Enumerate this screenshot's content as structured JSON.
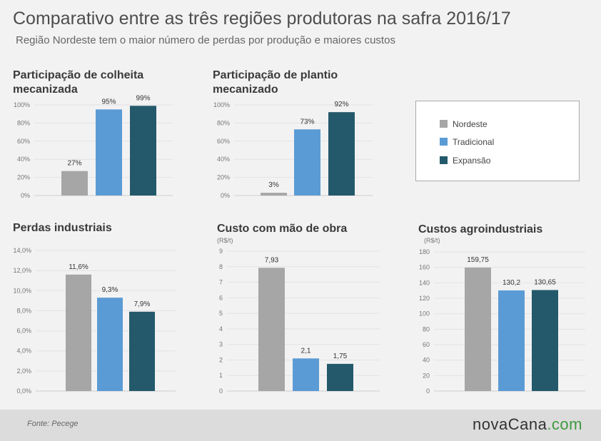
{
  "header": {
    "title": "Comparativo entre as três regiões produtoras na safra 2016/17",
    "subtitle": "Região Nordeste tem o maior número de perdas por produção e maiores custos"
  },
  "legend": {
    "items": [
      {
        "label": "Nordeste",
        "color": "#a6a6a6"
      },
      {
        "label": "Tradicional",
        "color": "#5b9bd5"
      },
      {
        "label": "Expansão",
        "color": "#24596b"
      }
    ]
  },
  "footer": {
    "source": "Fonte: Pecege",
    "brand": "novaCana",
    "brand_suffix": ".com"
  },
  "chart_data": [
    {
      "type": "bar",
      "title": "Participação de colheita mecanizada",
      "categories": [
        "Nordeste",
        "Tradicional",
        "Expansão"
      ],
      "values": [
        27,
        95,
        99
      ],
      "value_labels": [
        "27%",
        "95%",
        "99%"
      ],
      "ylim": [
        0,
        100
      ],
      "yticks": [
        0,
        20,
        40,
        60,
        80,
        100
      ],
      "ytick_labels": [
        "0%",
        "20%",
        "40%",
        "60%",
        "80%",
        "100%"
      ],
      "unit": "",
      "colors": [
        "#a6a6a6",
        "#5b9bd5",
        "#24596b"
      ],
      "grid": true
    },
    {
      "type": "bar",
      "title": "Participação de plantio mecanizado",
      "categories": [
        "Nordeste",
        "Tradicional",
        "Expansão"
      ],
      "values": [
        3,
        73,
        92
      ],
      "value_labels": [
        "3%",
        "73%",
        "92%"
      ],
      "ylim": [
        0,
        100
      ],
      "yticks": [
        0,
        20,
        40,
        60,
        80,
        100
      ],
      "ytick_labels": [
        "0%",
        "20%",
        "40%",
        "60%",
        "80%",
        "100%"
      ],
      "unit": "",
      "colors": [
        "#a6a6a6",
        "#5b9bd5",
        "#24596b"
      ],
      "grid": true
    },
    {
      "type": "bar",
      "title": "Perdas industriais",
      "categories": [
        "Nordeste",
        "Tradicional",
        "Expansão"
      ],
      "values": [
        11.6,
        9.3,
        7.9
      ],
      "value_labels": [
        "11,6%",
        "9,3%",
        "7,9%"
      ],
      "ylim": [
        0,
        14
      ],
      "yticks": [
        0,
        2,
        4,
        6,
        8,
        10,
        12,
        14
      ],
      "ytick_labels": [
        "0,0%",
        "2,0%",
        "4,0%",
        "6,0%",
        "8,0%",
        "10,0%",
        "12,0%",
        "14,0%"
      ],
      "unit": "",
      "colors": [
        "#a6a6a6",
        "#5b9bd5",
        "#24596b"
      ],
      "grid": true
    },
    {
      "type": "bar",
      "title": "Custo com mão de obra",
      "categories": [
        "Nordeste",
        "Tradicional",
        "Expansão"
      ],
      "values": [
        7.93,
        2.1,
        1.75
      ],
      "value_labels": [
        "7,93",
        "2,1",
        "1,75"
      ],
      "ylim": [
        0,
        9
      ],
      "yticks": [
        0,
        1,
        2,
        3,
        4,
        5,
        6,
        7,
        8,
        9
      ],
      "ytick_labels": [
        "0",
        "1",
        "2",
        "3",
        "4",
        "5",
        "6",
        "7",
        "8",
        "9"
      ],
      "unit": "(R$/t)",
      "colors": [
        "#a6a6a6",
        "#5b9bd5",
        "#24596b"
      ],
      "grid": true
    },
    {
      "type": "bar",
      "title": "Custos agroindustriais",
      "categories": [
        "Nordeste",
        "Tradicional",
        "Expansão"
      ],
      "values": [
        159.75,
        130.2,
        130.65
      ],
      "value_labels": [
        "159,75",
        "130,2",
        "130,65"
      ],
      "ylim": [
        0,
        180
      ],
      "yticks": [
        0,
        20,
        40,
        60,
        80,
        100,
        120,
        140,
        160,
        180
      ],
      "ytick_labels": [
        "0",
        "20",
        "40",
        "60",
        "80",
        "100",
        "120",
        "140",
        "160",
        "180"
      ],
      "unit": "(R$/t)",
      "colors": [
        "#a6a6a6",
        "#5b9bd5",
        "#24596b"
      ],
      "grid": true
    }
  ]
}
